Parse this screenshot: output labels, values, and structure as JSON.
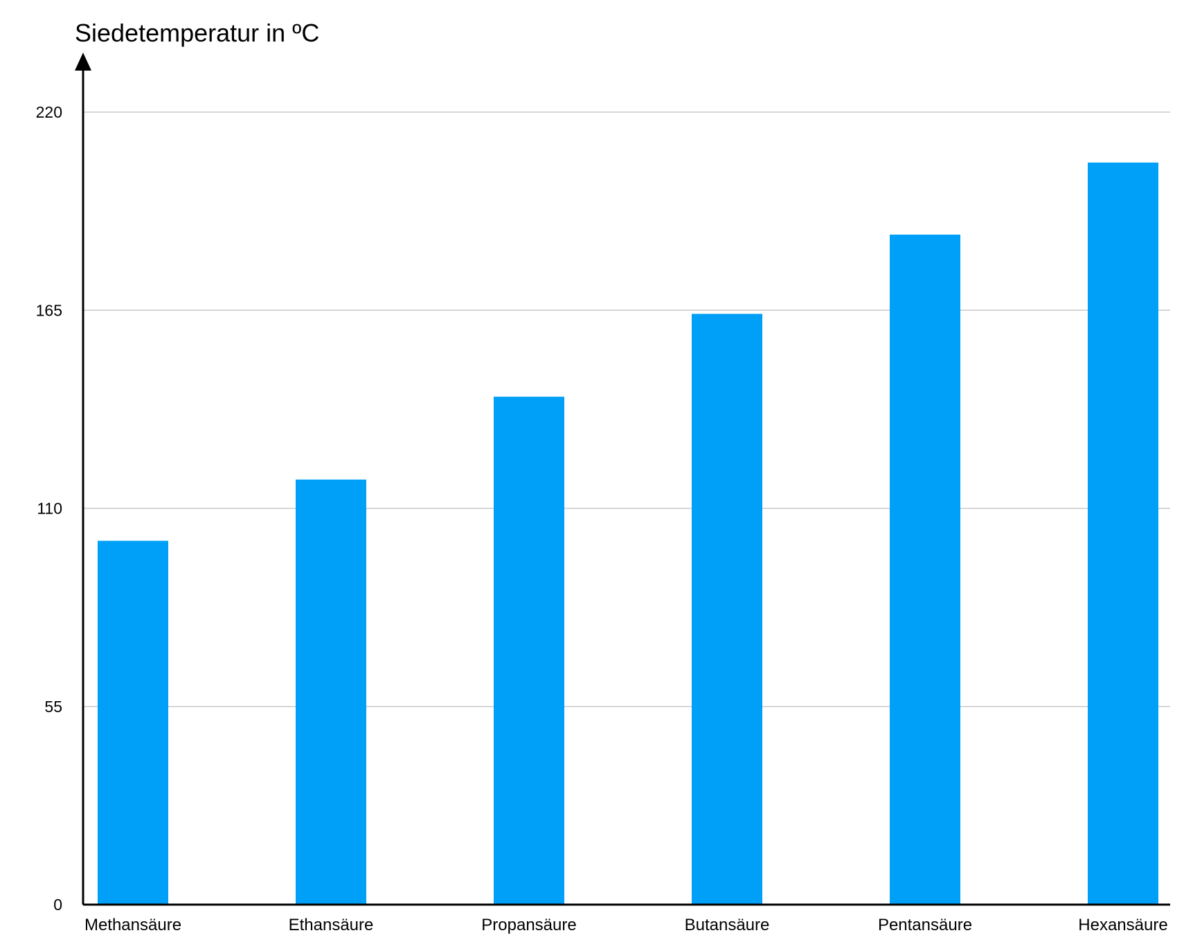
{
  "chart_data": {
    "type": "bar",
    "title": "",
    "ylabel": "Siedetemperatur in ºC",
    "xlabel": "",
    "categories": [
      "Methansäure",
      "Ethansäure",
      "Propansäure",
      "Butansäure",
      "Pentansäure",
      "Hexansäure"
    ],
    "series": [
      {
        "values": [
          101,
          118,
          141,
          164,
          186,
          206
        ]
      }
    ],
    "yticks": [
      "0",
      "55",
      "110",
      "165",
      "220"
    ],
    "ylim": [
      0,
      220
    ],
    "grid": true,
    "legend": "none",
    "colors": {
      "bar": "#00a0f8",
      "grid": "#c8c8c8",
      "axis": "#000000"
    }
  }
}
